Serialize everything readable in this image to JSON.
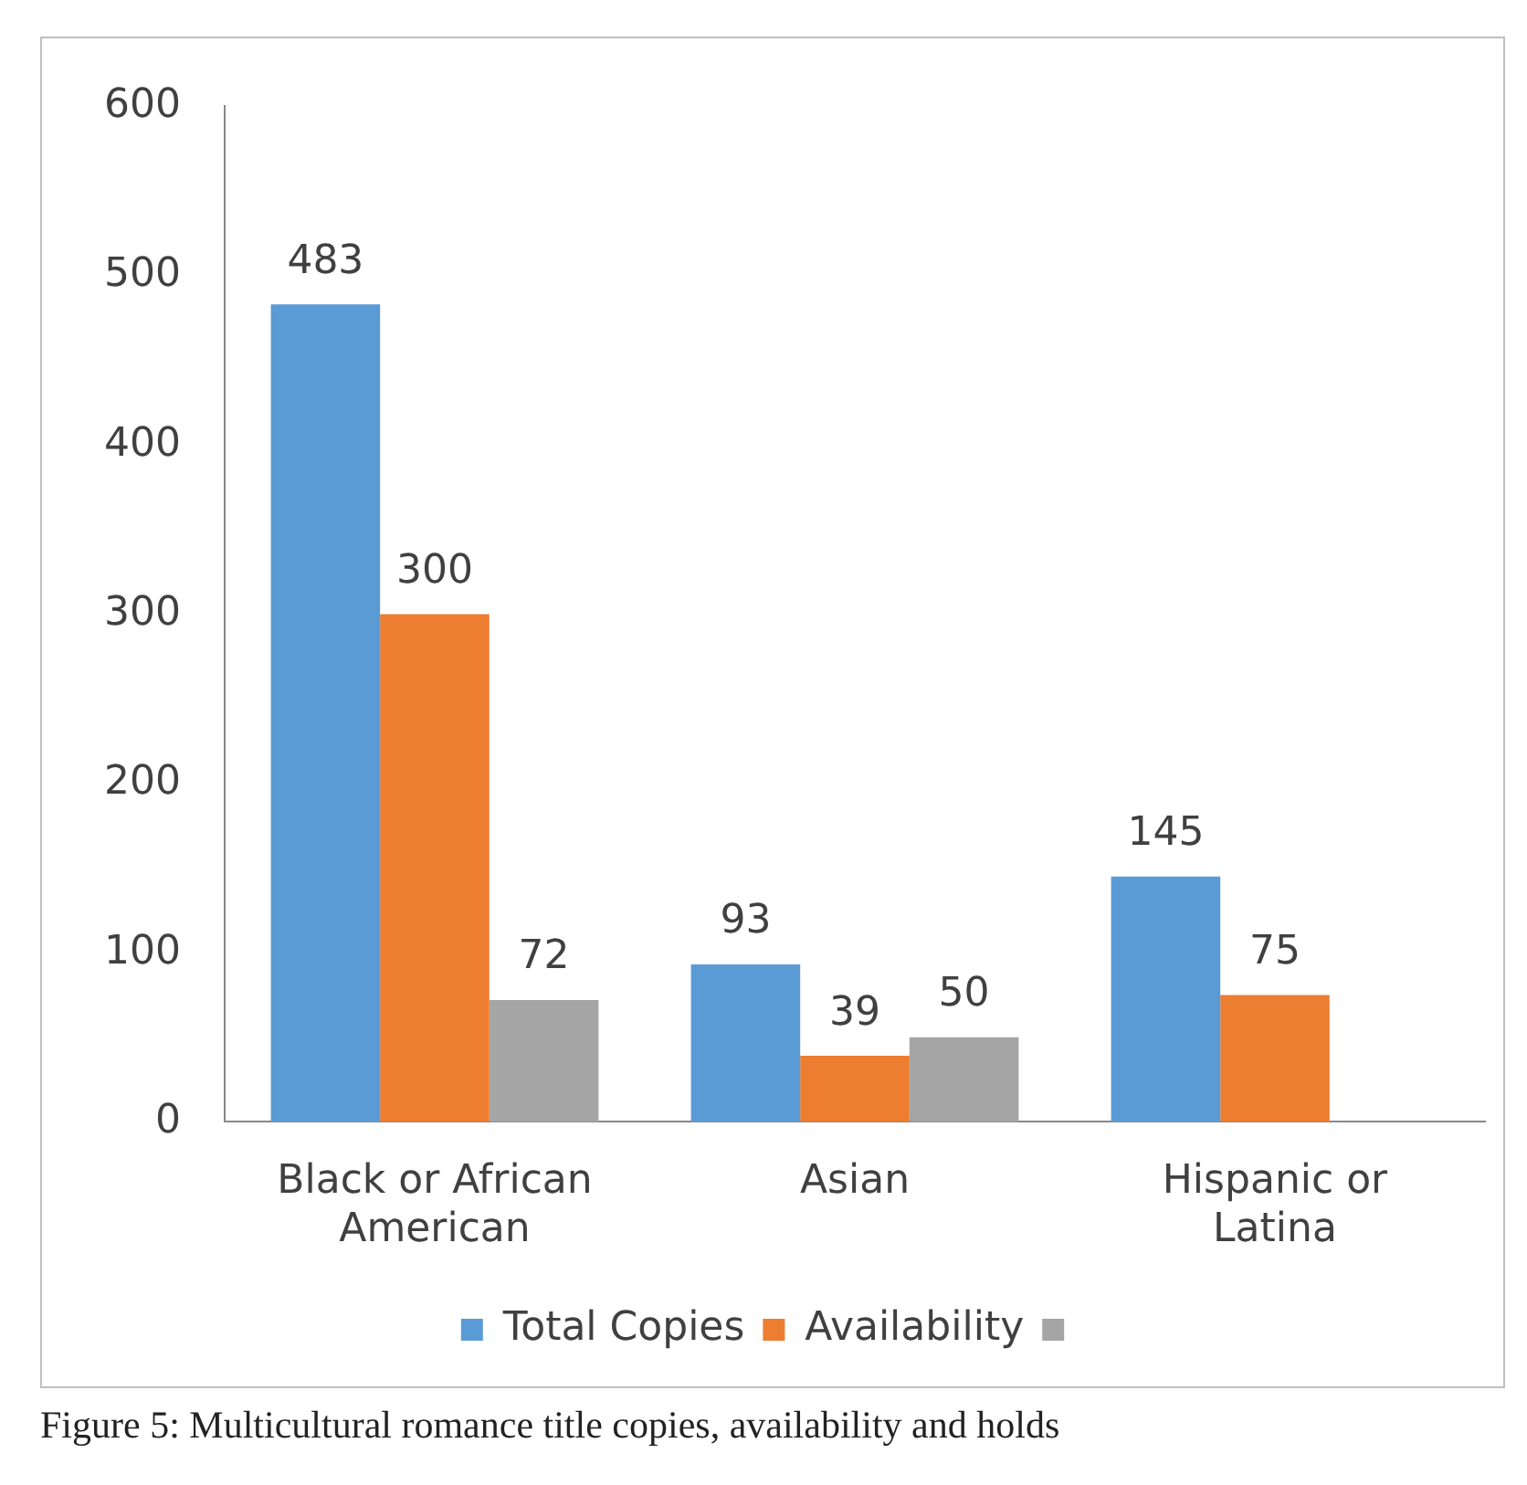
{
  "chart_data": {
    "type": "bar",
    "categories": [
      "Black or African American",
      "Asian",
      "Hispanic or Latina"
    ],
    "series": [
      {
        "name": "Total Copies",
        "color": "#5b9bd5",
        "values": [
          483,
          93,
          145
        ]
      },
      {
        "name": "Availability",
        "color": "#ed7d31",
        "values": [
          300,
          39,
          75
        ]
      },
      {
        "color": "#a5a5a5",
        "values": [
          72,
          50,
          null
        ]
      }
    ],
    "ylim": [
      0,
      600
    ],
    "yticks": [
      0,
      100,
      200,
      300,
      400,
      500,
      600
    ],
    "grid": false,
    "legend": "bottom",
    "data_labels": true,
    "annotations": [
      "Figure 5: Multicultural romance title copies, availability and holds"
    ]
  }
}
